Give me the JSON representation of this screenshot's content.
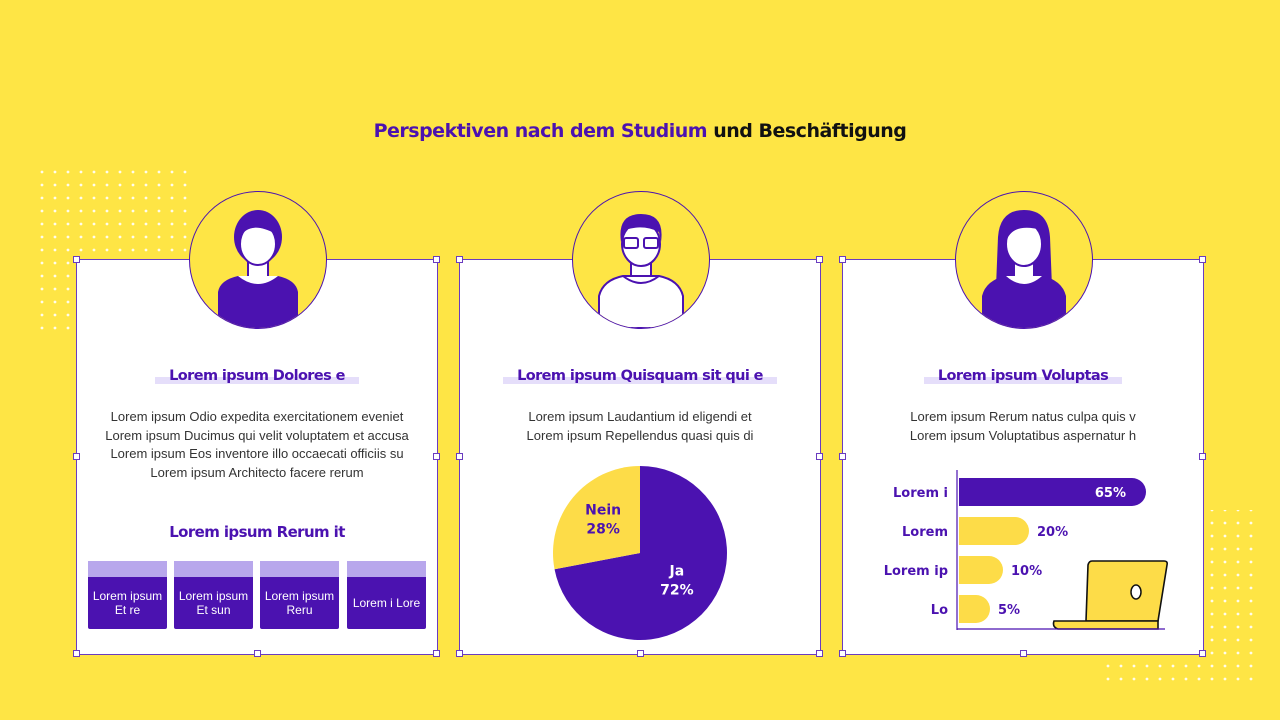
{
  "title": {
    "part1": "Perspektiven nach dem Studium",
    "part2": "und Beschäftigung"
  },
  "cards": [
    {
      "heading": "Lorem ipsum Dolores e",
      "lines": [
        "Lorem ipsum Odio expedita exercitationem eveniet",
        "Lorem ipsum Ducimus qui velit voluptatem et accusa",
        "Lorem ipsum Eos inventore illo occaecati officiis su",
        "Lorem ipsum Architecto facere rerum"
      ],
      "subheading": "Lorem ipsum Rerum it",
      "boxes": [
        "Lorem ipsum Et re",
        "Lorem ipsum Et sun",
        "Lorem ipsum Reru",
        "Lorem i Lore"
      ]
    },
    {
      "heading": "Lorem ipsum Quisquam sit qui e",
      "lines": [
        "Lorem ipsum Laudantium id eligendi et",
        "Lorem ipsum Repellendus quasi quis di"
      ]
    },
    {
      "heading": "Lorem ipsum Voluptas",
      "lines": [
        "Lorem ipsum Rerum natus culpa quis v",
        "Lorem ipsum Voluptatibus aspernatur h"
      ]
    }
  ],
  "chart_data": [
    {
      "type": "pie",
      "categories": [
        "Ja",
        "Nein"
      ],
      "values": [
        72,
        28
      ],
      "value_labels": [
        "72%",
        "28%"
      ],
      "colors": [
        "#4b12b0",
        "#fddc48"
      ]
    },
    {
      "type": "bar",
      "orientation": "horizontal",
      "categories": [
        "Lorem i",
        "Lorem",
        "Lorem ip",
        "Lo"
      ],
      "values": [
        65,
        20,
        10,
        5
      ],
      "value_labels": [
        "65%",
        "20%",
        "10%",
        "5%"
      ],
      "colors": [
        "#4b12b0",
        "#fddc48",
        "#fddc48",
        "#fddc48"
      ]
    }
  ]
}
